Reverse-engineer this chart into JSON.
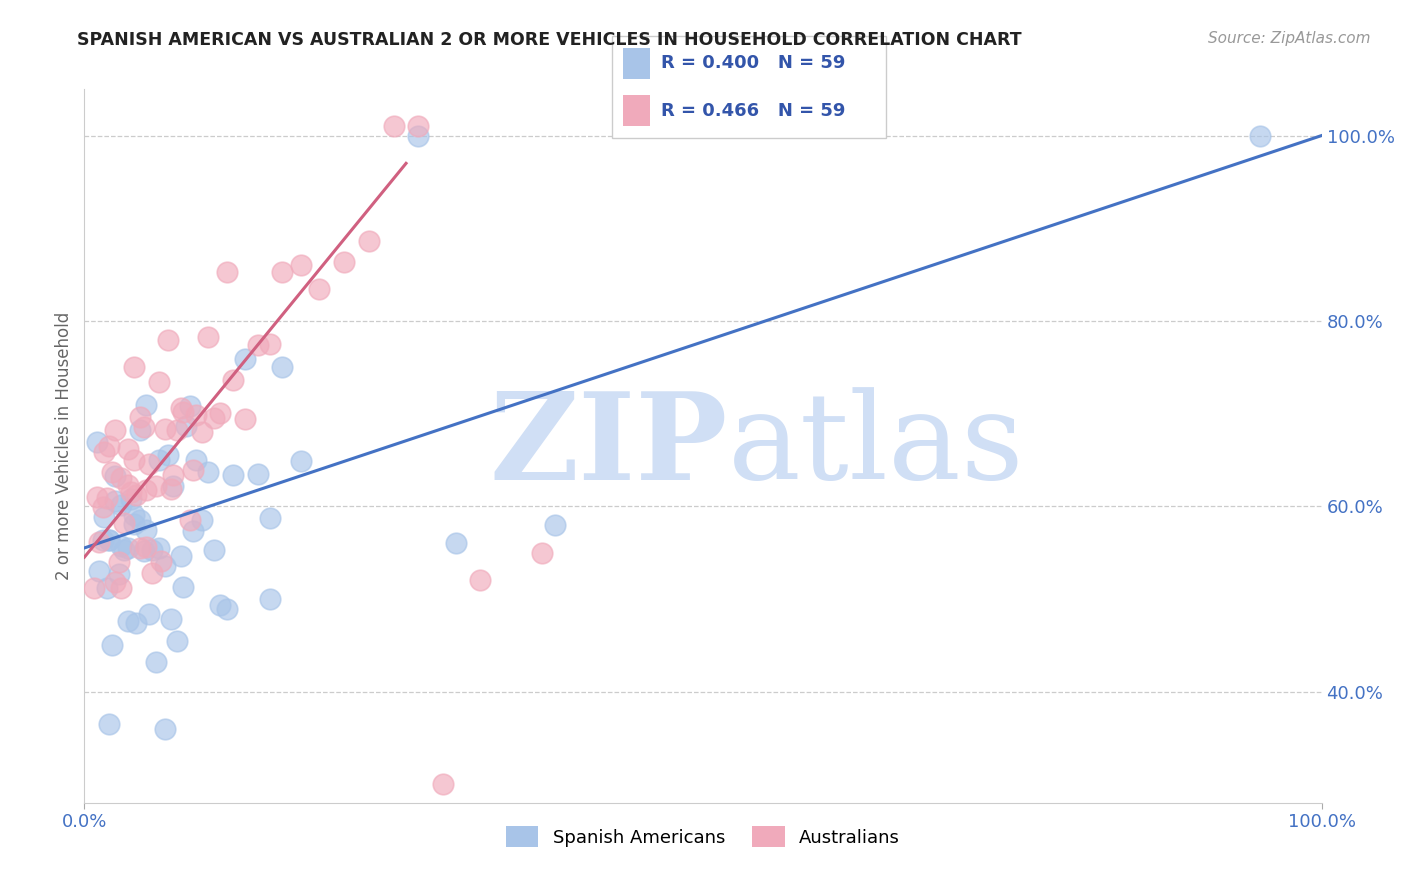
{
  "title": "SPANISH AMERICAN VS AUSTRALIAN 2 OR MORE VEHICLES IN HOUSEHOLD CORRELATION CHART",
  "source": "Source: ZipAtlas.com",
  "ylabel": "2 or more Vehicles in Household",
  "xlim": [
    0,
    1.0
  ],
  "ylim": [
    0.28,
    1.05
  ],
  "xtick_positions": [
    0.0,
    1.0
  ],
  "xtick_labels": [
    "0.0%",
    "100.0%"
  ],
  "ytick_positions": [
    0.4,
    0.6,
    0.8,
    1.0
  ],
  "ytick_labels": [
    "40.0%",
    "60.0%",
    "80.0%",
    "100.0%"
  ],
  "r_blue": "R = 0.400",
  "n_blue": "N = 59",
  "r_pink": "R = 0.466",
  "n_pink": "N = 59",
  "blue_color": "#A8C4E8",
  "pink_color": "#F0AABB",
  "trend_blue": "#4472C4",
  "trend_pink": "#D06080",
  "watermark_zip": "ZIP",
  "watermark_atlas": "atlas",
  "watermark_color": "#D0DFF5",
  "blue_trend_x0": 0.0,
  "blue_trend_y0": 0.555,
  "blue_trend_x1": 1.0,
  "blue_trend_y1": 1.0,
  "pink_trend_x0": 0.0,
  "pink_trend_y0": 0.545,
  "pink_trend_x1": 0.26,
  "pink_trend_y1": 0.97
}
